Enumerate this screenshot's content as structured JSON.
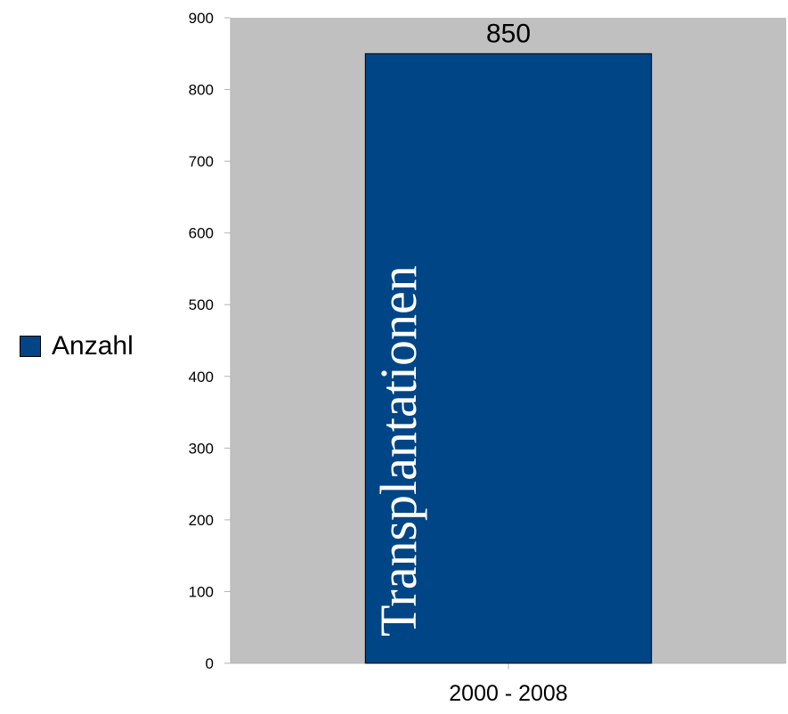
{
  "chart_data": {
    "type": "bar",
    "categories": [
      "2000 - 2008"
    ],
    "series": [
      {
        "name": "Anzahl",
        "values": [
          850
        ],
        "color": "#004586",
        "data_labels": [
          "850"
        ],
        "bar_text": "Transplantationen"
      }
    ],
    "ylim": [
      0,
      900
    ],
    "yticks": [
      0,
      100,
      200,
      300,
      400,
      500,
      600,
      700,
      800,
      900
    ],
    "grid": false,
    "legend": "left",
    "plot_background": "#c0c0c0"
  }
}
